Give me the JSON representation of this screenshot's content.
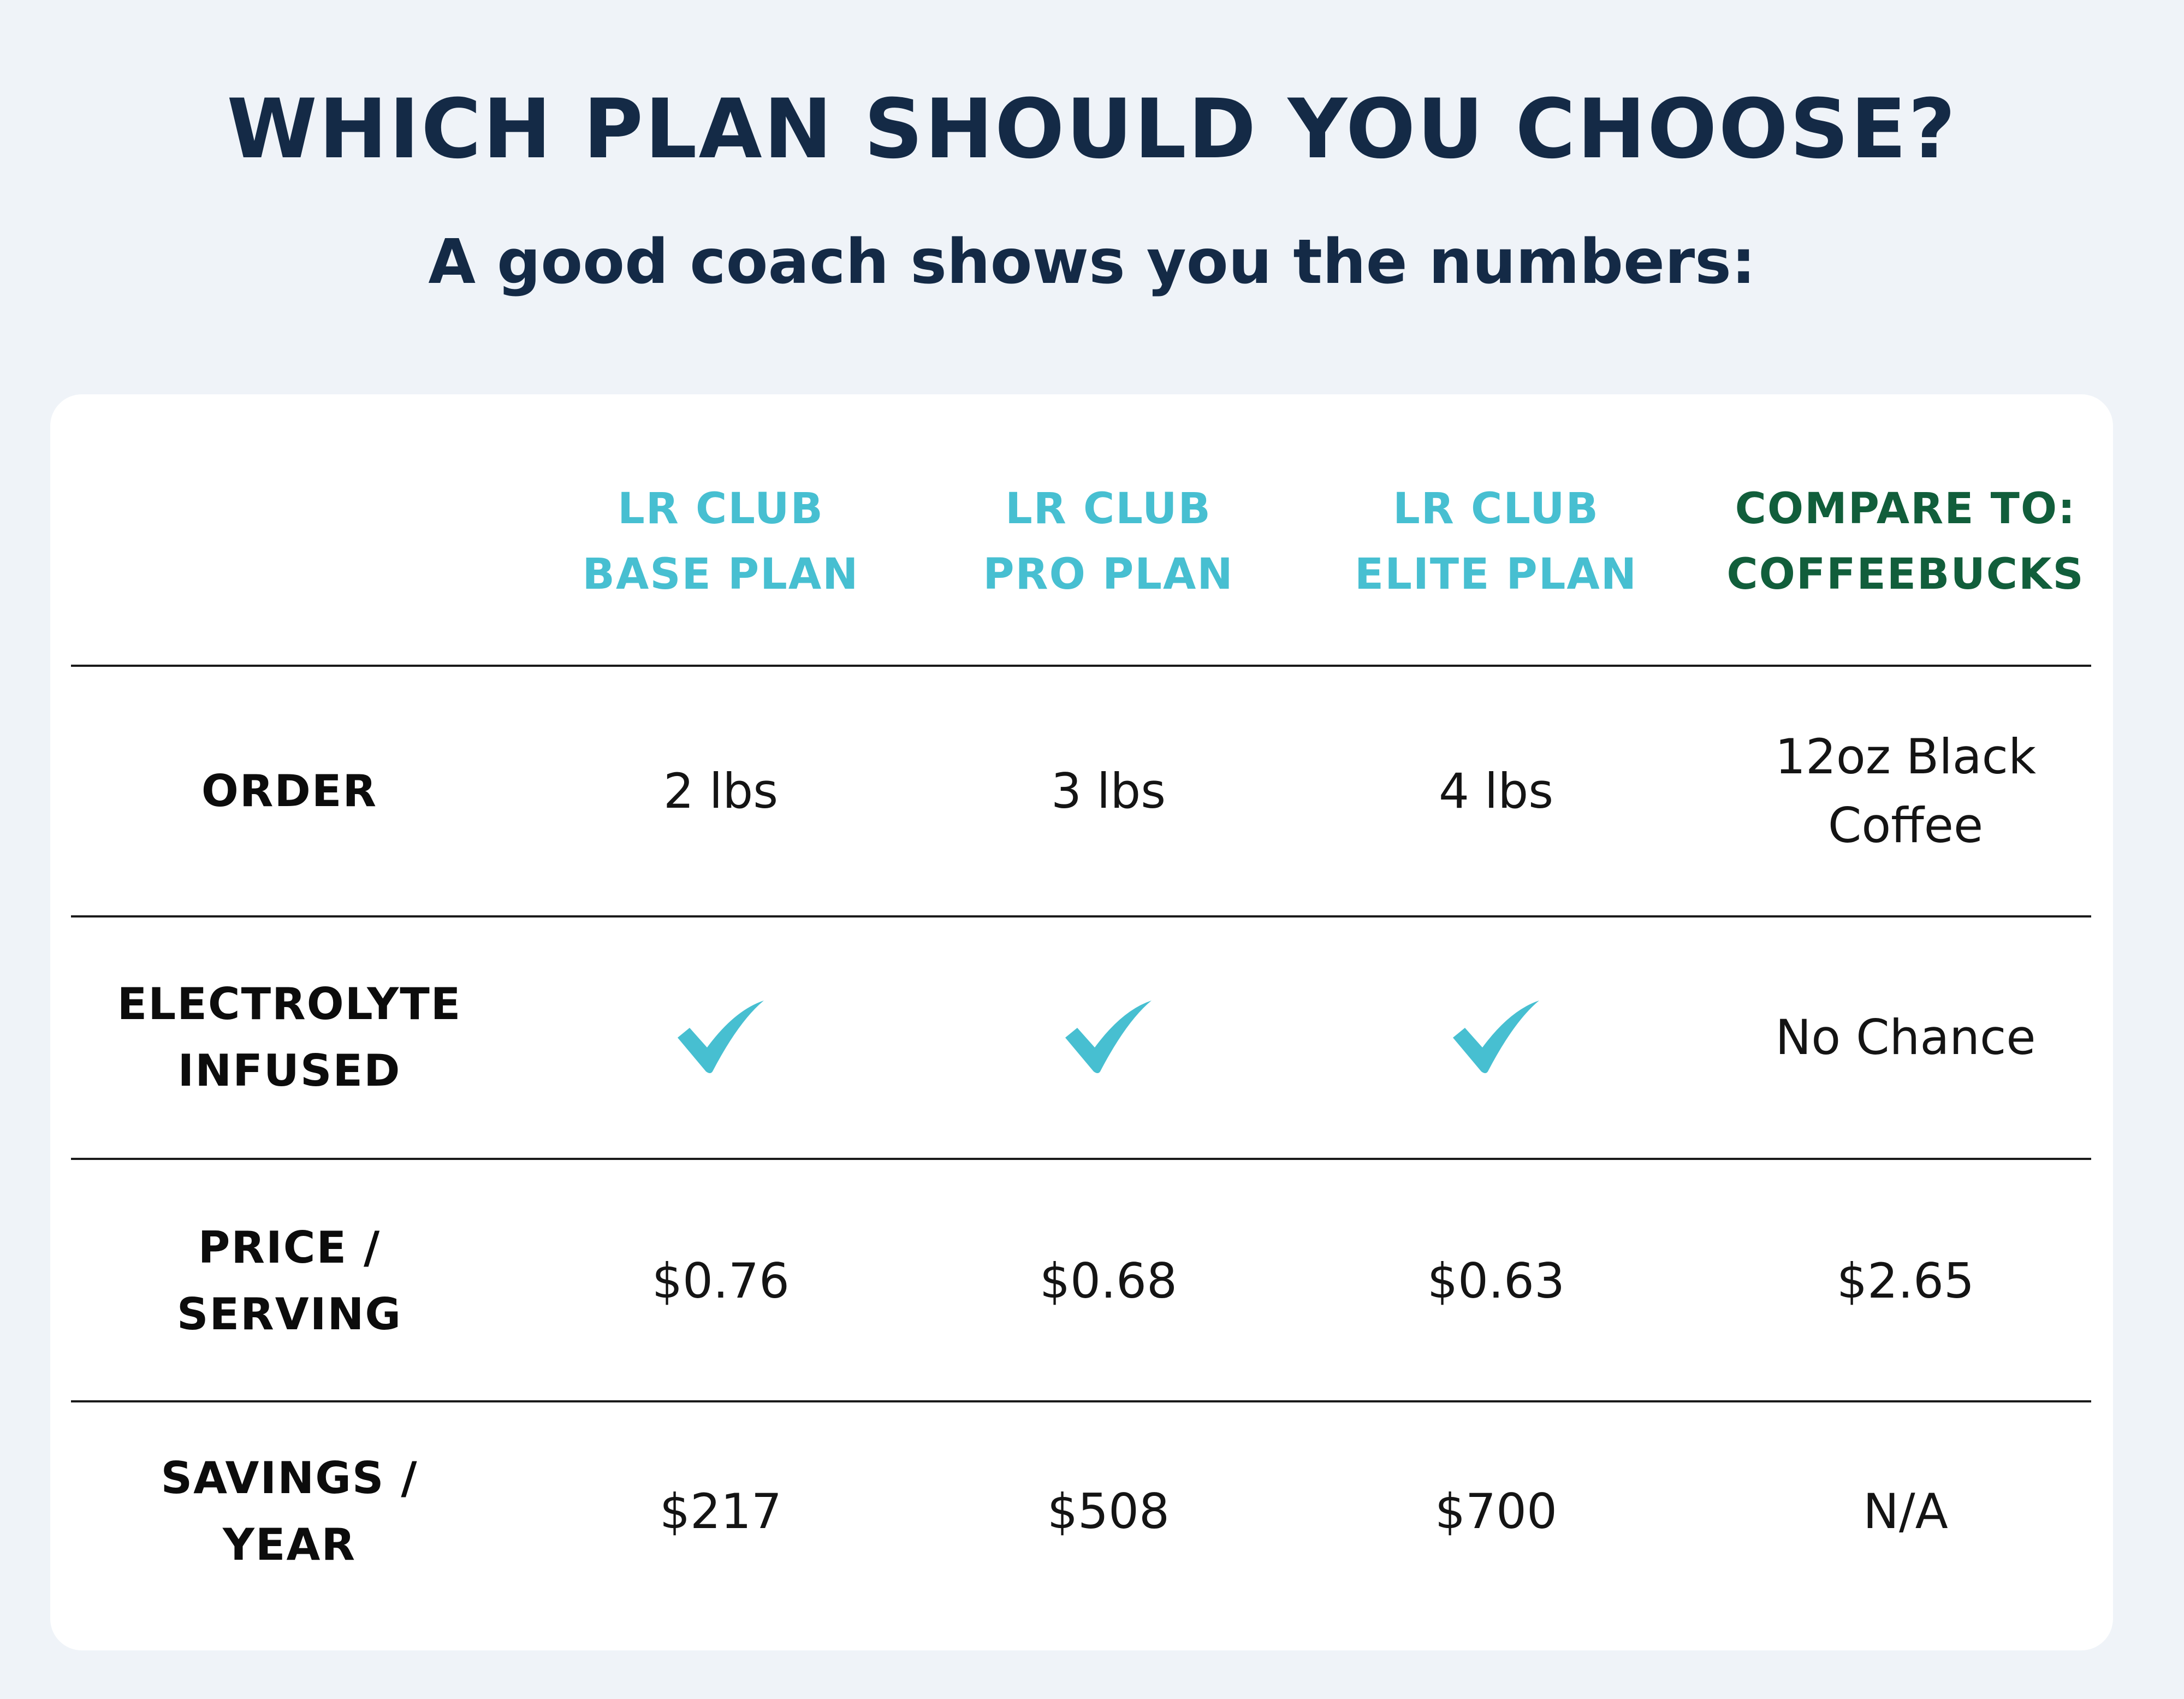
{
  "title": "WHICH PLAN SHOULD YOU CHOOSE?",
  "subtitle": "A good coach shows you the numbers:",
  "colors": {
    "background": "#eff3f8",
    "title": "#142a46",
    "plan_header": "#47bfd1",
    "compare_header": "#115e3b",
    "checkmark": "#47bfd1",
    "card": "#ffffff"
  },
  "columns": [
    {
      "line1": "LR CLUB",
      "line2": "BASE PLAN"
    },
    {
      "line1": "LR CLUB",
      "line2": "PRO PLAN"
    },
    {
      "line1": "LR CLUB",
      "line2": "ELITE PLAN"
    },
    {
      "line1": "COMPARE TO:",
      "line2": "COFFEEBUCKS"
    }
  ],
  "rows": {
    "order": {
      "label": [
        "ORDER"
      ],
      "values": [
        [
          "2 lbs"
        ],
        [
          "3 lbs"
        ],
        [
          "4 lbs"
        ],
        [
          "12oz Black",
          "Coffee"
        ]
      ]
    },
    "electrolyte": {
      "label": [
        "ELECTROLYTE",
        "INFUSED"
      ],
      "values": [
        "checkmark-icon",
        "checkmark-icon",
        "checkmark-icon",
        "No Chance"
      ]
    },
    "price": {
      "label": [
        "PRICE /",
        "SERVING"
      ],
      "values": [
        "$0.76",
        "$0.68",
        "$0.63",
        "$2.65"
      ]
    },
    "savings": {
      "label": [
        "SAVINGS /",
        "YEAR"
      ],
      "values": [
        "$217",
        "$508",
        "$700",
        "N/A"
      ]
    }
  }
}
